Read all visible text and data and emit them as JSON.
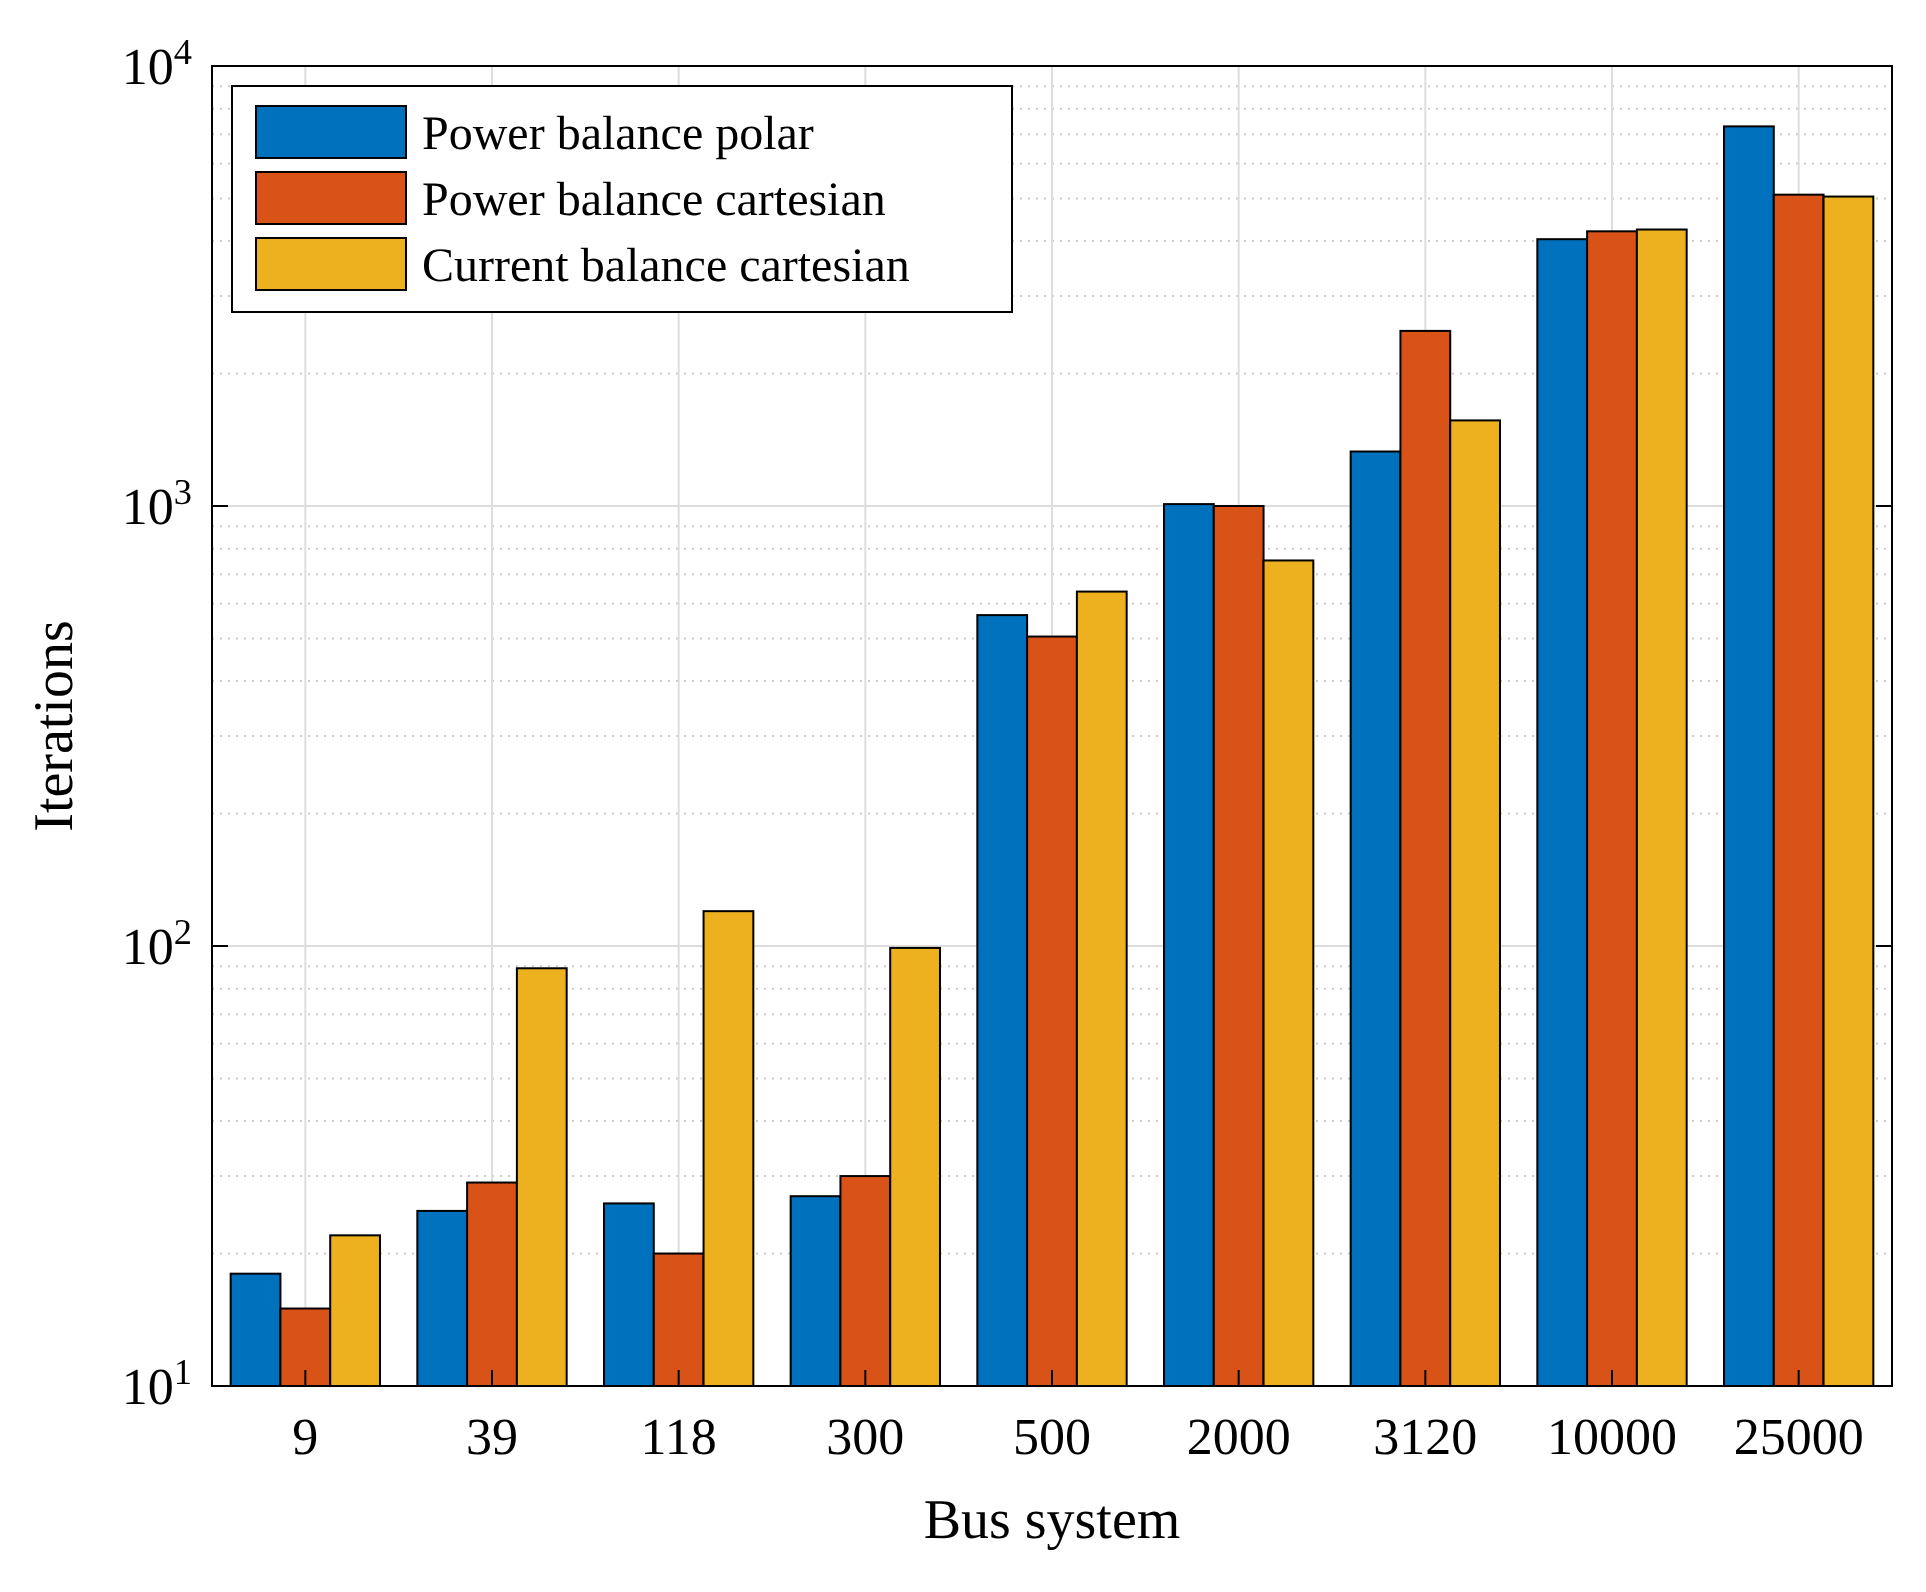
{
  "chart_data": {
    "type": "bar",
    "xlabel": "Bus system",
    "ylabel": "Iterations",
    "categories": [
      "9",
      "39",
      "118",
      "300",
      "500",
      "2000",
      "3120",
      "10000",
      "25000"
    ],
    "series": [
      {
        "name": "Power balance polar",
        "color": "#0072bd",
        "values": [
          18,
          25,
          26,
          27,
          565,
          1010,
          1330,
          4040,
          7290
        ]
      },
      {
        "name": "Power balance cartesian",
        "color": "#d95319",
        "values": [
          15,
          29,
          20,
          30,
          505,
          1000,
          2500,
          4210,
          5100
        ]
      },
      {
        "name": "Current balance cartesian",
        "color": "#edb120",
        "values": [
          22,
          89,
          120,
          99,
          639,
          752,
          1565,
          4250,
          5050
        ]
      }
    ],
    "log": "y",
    "ylim": [
      10,
      10000
    ],
    "yticks": [
      {
        "value": 10,
        "label": "10$^{1}$"
      },
      {
        "value": 100,
        "label": "10$^{2}$"
      },
      {
        "value": 1000,
        "label": "10$^{3}$"
      },
      {
        "value": 10000,
        "label": "10$^{4}$"
      }
    ],
    "grid": true,
    "legend": "top left"
  }
}
